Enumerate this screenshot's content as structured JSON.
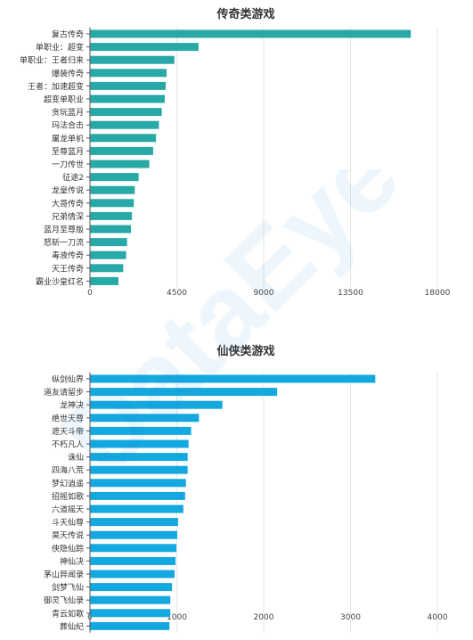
{
  "watermark": "DataEye",
  "chart_data": [
    {
      "type": "bar",
      "orientation": "horizontal",
      "title": "传奇类游戏",
      "color": "#27a9a7",
      "xlim": [
        0,
        18000
      ],
      "xticks": [
        0,
        4500,
        9000,
        13500,
        18000
      ],
      "grid": true,
      "categories": [
        "复古传奇",
        "单职业：超变",
        "单职业：王者归来",
        "爆装传奇",
        "王者：加速超变",
        "超变单职业",
        "贪玩蓝月",
        "玛法合击",
        "屠龙单机",
        "至尊蓝月",
        "一刀传世",
        "征途2",
        "龙皇传说",
        "大哥传奇",
        "兄弟情深",
        "蓝月至尊版",
        "怒斩一刀流",
        "毒液传奇",
        "天王传奇",
        "霸业沙皇红名"
      ],
      "values": [
        16600,
        5600,
        4350,
        3950,
        3900,
        3850,
        3700,
        3550,
        3400,
        3250,
        3050,
        2500,
        2300,
        2250,
        2150,
        2100,
        1900,
        1850,
        1700,
        1450
      ]
    },
    {
      "type": "bar",
      "orientation": "horizontal",
      "title": "仙侠类游戏",
      "color": "#14a8e0",
      "xlim": [
        0,
        4000
      ],
      "xticks": [
        0,
        1000,
        2000,
        3000,
        4000
      ],
      "grid": true,
      "categories": [
        "纵剑仙界",
        "道友请留步",
        "龙神决",
        "绝世天尊",
        "遮天斗帝",
        "不朽凡人",
        "诛仙",
        "四海八荒",
        "梦幻逍遥",
        "招摇如歌",
        "六道摇天",
        "斗天仙尊",
        "昊天传说",
        "侠隐仙踪",
        "神仙决",
        "茅山异闻录",
        "剑梦飞仙",
        "御灵飞仙录",
        "青云如歌",
        "葬仙纪"
      ],
      "values": [
        3280,
        2150,
        1520,
        1250,
        1160,
        1130,
        1120,
        1120,
        1100,
        1090,
        1070,
        1010,
        1000,
        990,
        980,
        970,
        940,
        920,
        920,
        910
      ]
    }
  ]
}
